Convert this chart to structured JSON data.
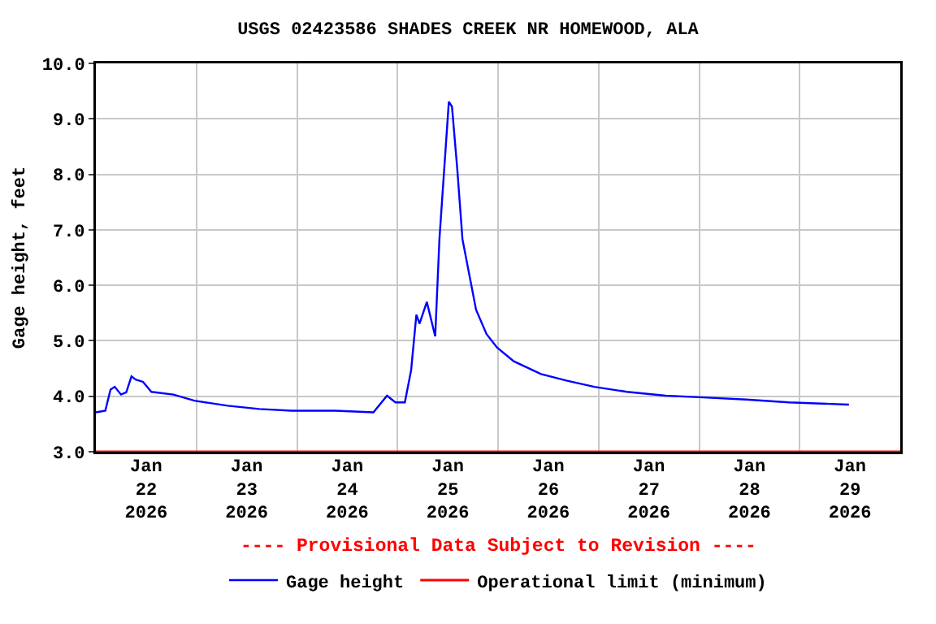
{
  "chart_data": {
    "type": "line",
    "title": "USGS 02423586 SHADES CREEK NR HOMEWOOD, ALA",
    "ylabel": "Gage height, feet",
    "x": [
      "2026-01-22T00:00",
      "2026-01-22T02:15",
      "2026-01-22T03:30",
      "2026-01-22T04:30",
      "2026-01-22T06:00",
      "2026-01-22T07:15",
      "2026-01-22T08:30",
      "2026-01-22T09:30",
      "2026-01-22T11:15",
      "2026-01-22T13:15",
      "2026-01-22T18:30",
      "2026-01-22T23:30",
      "2026-01-23T07:30",
      "2026-01-23T15:00",
      "2026-01-23T22:45",
      "2026-01-24T09:15",
      "2026-01-24T18:15",
      "2026-01-24T21:30",
      "2026-01-24T23:30",
      "2026-01-25T01:45",
      "2026-01-25T03:15",
      "2026-01-25T04:30",
      "2026-01-25T05:15",
      "2026-01-25T07:00",
      "2026-01-25T09:00",
      "2026-01-25T10:00",
      "2026-01-25T12:15",
      "2026-01-25T13:00",
      "2026-01-25T14:15",
      "2026-01-25T15:30",
      "2026-01-25T18:45",
      "2026-01-25T21:15",
      "2026-01-25T23:45",
      "2026-01-26T03:45",
      "2026-01-26T10:15",
      "2026-01-26T16:30",
      "2026-01-26T23:00",
      "2026-01-27T06:45",
      "2026-01-27T16:00",
      "2026-01-28T01:00",
      "2026-01-28T11:15",
      "2026-01-28T21:30",
      "2026-01-29T11:45"
    ],
    "series": [
      {
        "name": "Gage height",
        "color": "#0000ff",
        "values": [
          3.71,
          3.74,
          4.12,
          4.17,
          4.03,
          4.07,
          4.36,
          4.3,
          4.26,
          4.08,
          4.03,
          3.92,
          3.83,
          3.77,
          3.74,
          3.74,
          3.71,
          4.01,
          3.89,
          3.89,
          4.47,
          5.47,
          5.31,
          5.7,
          5.08,
          6.83,
          9.31,
          9.22,
          8.11,
          6.83,
          5.56,
          5.12,
          4.88,
          4.63,
          4.4,
          4.28,
          4.17,
          4.08,
          4.01,
          3.98,
          3.94,
          3.89,
          3.85
        ]
      }
    ],
    "ref_lines": [
      {
        "axis": "y",
        "value": 3.0,
        "label": "Operational limit (minimum)",
        "color": "#ff0000"
      }
    ],
    "xlim": [
      "2026-01-22T00:00",
      "2026-01-30T00:00"
    ],
    "xticks": [
      {
        "value": "2026-01-22T12:00",
        "label": "Jan\n22\n2026"
      },
      {
        "value": "2026-01-23T00:00",
        "label": null
      },
      {
        "value": "2026-01-23T12:00",
        "label": "Jan\n23\n2026"
      },
      {
        "value": "2026-01-24T00:00",
        "label": null
      },
      {
        "value": "2026-01-24T12:00",
        "label": "Jan\n24\n2026"
      },
      {
        "value": "2026-01-25T00:00",
        "label": null
      },
      {
        "value": "2026-01-25T12:00",
        "label": "Jan\n25\n2026"
      },
      {
        "value": "2026-01-26T00:00",
        "label": null
      },
      {
        "value": "2026-01-26T12:00",
        "label": "Jan\n26\n2026"
      },
      {
        "value": "2026-01-27T00:00",
        "label": null
      },
      {
        "value": "2026-01-27T12:00",
        "label": "Jan\n27\n2026"
      },
      {
        "value": "2026-01-28T00:00",
        "label": null
      },
      {
        "value": "2026-01-28T12:00",
        "label": "Jan\n28\n2026"
      },
      {
        "value": "2026-01-29T00:00",
        "label": null
      },
      {
        "value": "2026-01-29T12:00",
        "label": "Jan\n29\n2026"
      }
    ],
    "ylim": [
      3.0,
      10.0
    ],
    "yticks": [
      {
        "value": 3,
        "label": "3.0"
      },
      {
        "value": 4,
        "label": "4.0"
      },
      {
        "value": 5,
        "label": "5.0"
      },
      {
        "value": 6,
        "label": "6.0"
      },
      {
        "value": 7,
        "label": "7.0"
      },
      {
        "value": 8,
        "label": "8.0"
      },
      {
        "value": 9,
        "label": "9.0"
      },
      {
        "value": 10,
        "label": "10.0"
      }
    ],
    "annotations": [
      "---- Provisional Data Subject to Revision ----"
    ],
    "grid": true,
    "legend": "bottom",
    "marker": "none",
    "line_style": "solid"
  }
}
